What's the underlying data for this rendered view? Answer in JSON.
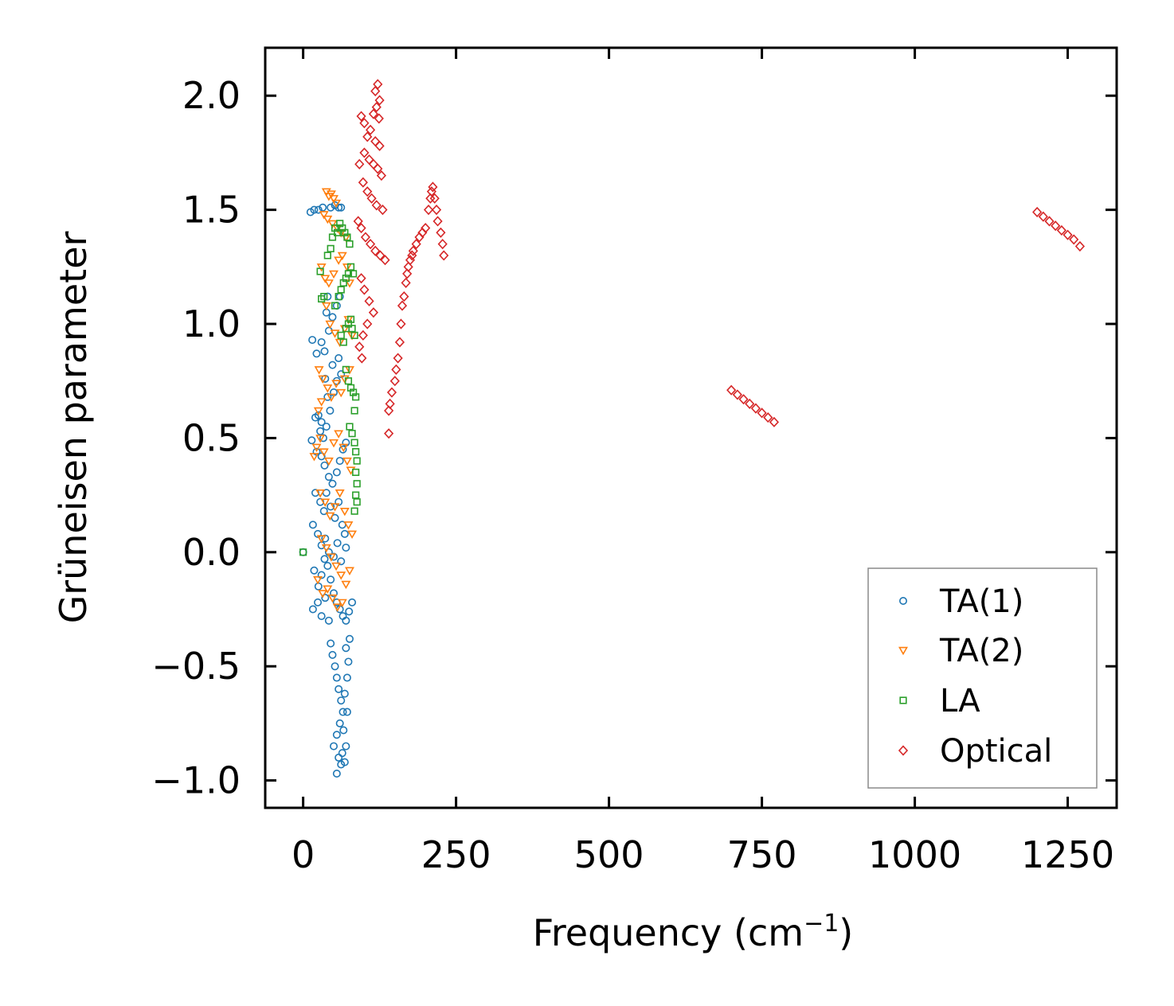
{
  "chart_data": {
    "type": "scatter",
    "title": "",
    "xlabel": "Frequency (cm",
    "xlabel_sup": "−1",
    "xlabel_close": ")",
    "ylabel": "Grüneisen parameter",
    "xlim": [
      -62,
      1330
    ],
    "ylim": [
      -1.12,
      2.21
    ],
    "xticks": [
      0,
      250,
      500,
      750,
      1000,
      1250
    ],
    "xtick_labels": [
      "0",
      "250",
      "500",
      "750",
      "1000",
      "1250"
    ],
    "yticks": [
      -1.0,
      -0.5,
      0.0,
      0.5,
      1.0,
      1.5,
      2.0
    ],
    "ytick_labels": [
      "−1.0",
      "−0.5",
      "0.0",
      "0.5",
      "1.0",
      "1.5",
      "2.0"
    ],
    "legend_position": "lower-right",
    "series": [
      {
        "name": "TA(1)",
        "marker": "circle",
        "color": "#1f77b4",
        "points": [
          [
            0,
            0
          ],
          [
            12,
            1.49
          ],
          [
            18,
            1.5
          ],
          [
            25,
            1.5
          ],
          [
            32,
            1.51
          ],
          [
            45,
            1.51
          ],
          [
            52,
            1.52
          ],
          [
            58,
            1.51
          ],
          [
            62,
            1.51
          ],
          [
            15,
            0.93
          ],
          [
            22,
            0.87
          ],
          [
            30,
            0.92
          ],
          [
            35,
            0.88
          ],
          [
            42,
            0.97
          ],
          [
            48,
            1.03
          ],
          [
            55,
            1.08
          ],
          [
            60,
            1.12
          ],
          [
            40,
            1.12
          ],
          [
            38,
            1.05
          ],
          [
            20,
            0.59
          ],
          [
            25,
            0.6
          ],
          [
            30,
            0.57
          ],
          [
            28,
            0.53
          ],
          [
            33,
            0.5
          ],
          [
            38,
            0.55
          ],
          [
            44,
            0.62
          ],
          [
            50,
            0.7
          ],
          [
            55,
            0.75
          ],
          [
            48,
            0.82
          ],
          [
            36,
            0.76
          ],
          [
            40,
            0.68
          ],
          [
            58,
            0.85
          ],
          [
            62,
            0.78
          ],
          [
            14,
            0.49
          ],
          [
            22,
            0.44
          ],
          [
            30,
            0.42
          ],
          [
            35,
            0.38
          ],
          [
            42,
            0.33
          ],
          [
            48,
            0.3
          ],
          [
            55,
            0.35
          ],
          [
            60,
            0.4
          ],
          [
            65,
            0.45
          ],
          [
            70,
            0.48
          ],
          [
            20,
            0.26
          ],
          [
            28,
            0.22
          ],
          [
            34,
            0.18
          ],
          [
            38,
            0.26
          ],
          [
            45,
            0.2
          ],
          [
            52,
            0.15
          ],
          [
            58,
            0.22
          ],
          [
            64,
            0.12
          ],
          [
            68,
            0.08
          ],
          [
            16,
            0.12
          ],
          [
            24,
            0.08
          ],
          [
            30,
            0.03
          ],
          [
            36,
            0.06
          ],
          [
            42,
            0.0
          ],
          [
            50,
            -0.02
          ],
          [
            56,
            0.04
          ],
          [
            62,
            -0.04
          ],
          [
            70,
            0.02
          ],
          [
            18,
            -0.08
          ],
          [
            25,
            -0.15
          ],
          [
            30,
            -0.1
          ],
          [
            35,
            -0.03
          ],
          [
            40,
            -0.06
          ],
          [
            45,
            -0.12
          ],
          [
            50,
            -0.18
          ],
          [
            55,
            -0.22
          ],
          [
            60,
            -0.25
          ],
          [
            65,
            -0.28
          ],
          [
            70,
            -0.3
          ],
          [
            75,
            -0.26
          ],
          [
            80,
            -0.22
          ],
          [
            16,
            -0.25
          ],
          [
            24,
            -0.22
          ],
          [
            30,
            -0.28
          ],
          [
            36,
            -0.2
          ],
          [
            42,
            -0.3
          ],
          [
            45,
            -0.4
          ],
          [
            48,
            -0.45
          ],
          [
            52,
            -0.5
          ],
          [
            55,
            -0.55
          ],
          [
            58,
            -0.6
          ],
          [
            62,
            -0.65
          ],
          [
            65,
            -0.7
          ],
          [
            60,
            -0.75
          ],
          [
            55,
            -0.8
          ],
          [
            50,
            -0.85
          ],
          [
            58,
            -0.9
          ],
          [
            62,
            -0.93
          ],
          [
            55,
            -0.97
          ],
          [
            64,
            -0.88
          ],
          [
            68,
            -0.92
          ],
          [
            70,
            -0.85
          ],
          [
            66,
            -0.78
          ],
          [
            72,
            -0.7
          ],
          [
            68,
            -0.62
          ],
          [
            72,
            -0.55
          ],
          [
            74,
            -0.48
          ],
          [
            70,
            -0.42
          ],
          [
            76,
            -0.38
          ]
        ]
      },
      {
        "name": "TA(2)",
        "marker": "triangle-down",
        "color": "#ff7f0e",
        "points": [
          [
            38,
            1.58
          ],
          [
            42,
            1.56
          ],
          [
            46,
            1.57
          ],
          [
            50,
            1.55
          ],
          [
            54,
            1.53
          ],
          [
            34,
            1.48
          ],
          [
            40,
            1.46
          ],
          [
            48,
            1.44
          ],
          [
            56,
            1.42
          ],
          [
            62,
            1.4
          ],
          [
            70,
            1.38
          ],
          [
            30,
            1.25
          ],
          [
            36,
            1.2
          ],
          [
            42,
            1.18
          ],
          [
            50,
            1.22
          ],
          [
            58,
            1.28
          ],
          [
            64,
            1.3
          ],
          [
            72,
            1.25
          ],
          [
            76,
            1.18
          ],
          [
            38,
            1.08
          ],
          [
            44,
            1.0
          ],
          [
            52,
            0.96
          ],
          [
            60,
            0.92
          ],
          [
            68,
            0.98
          ],
          [
            74,
            1.02
          ],
          [
            80,
            0.95
          ],
          [
            26,
            0.8
          ],
          [
            32,
            0.76
          ],
          [
            40,
            0.72
          ],
          [
            46,
            0.68
          ],
          [
            54,
            0.74
          ],
          [
            62,
            0.7
          ],
          [
            68,
            0.76
          ],
          [
            76,
            0.8
          ],
          [
            30,
            0.66
          ],
          [
            25,
            0.62
          ],
          [
            18,
            0.42
          ],
          [
            22,
            0.46
          ],
          [
            28,
            0.5
          ],
          [
            34,
            0.44
          ],
          [
            42,
            0.4
          ],
          [
            50,
            0.48
          ],
          [
            58,
            0.52
          ],
          [
            66,
            0.46
          ],
          [
            72,
            0.4
          ],
          [
            78,
            0.36
          ],
          [
            28,
            0.26
          ],
          [
            36,
            0.22
          ],
          [
            44,
            0.16
          ],
          [
            52,
            0.2
          ],
          [
            60,
            0.26
          ],
          [
            68,
            0.18
          ],
          [
            74,
            0.12
          ],
          [
            80,
            0.08
          ],
          [
            30,
            0.06
          ],
          [
            38,
            0.02
          ],
          [
            46,
            -0.02
          ],
          [
            54,
            -0.06
          ],
          [
            62,
            -0.1
          ],
          [
            70,
            -0.14
          ],
          [
            76,
            -0.08
          ],
          [
            24,
            -0.12
          ],
          [
            32,
            -0.18
          ],
          [
            40,
            -0.16
          ],
          [
            48,
            -0.2
          ],
          [
            56,
            -0.24
          ],
          [
            64,
            -0.22
          ]
        ]
      },
      {
        "name": "LA",
        "marker": "square",
        "color": "#2ca02c",
        "points": [
          [
            0,
            0
          ],
          [
            28,
            1.23
          ],
          [
            30,
            1.11
          ],
          [
            34,
            1.12
          ],
          [
            40,
            1.3
          ],
          [
            45,
            1.33
          ],
          [
            48,
            1.38
          ],
          [
            52,
            1.42
          ],
          [
            56,
            1.4
          ],
          [
            60,
            1.44
          ],
          [
            64,
            1.42
          ],
          [
            68,
            1.4
          ],
          [
            72,
            1.38
          ],
          [
            76,
            1.35
          ],
          [
            52,
            1.08
          ],
          [
            58,
            1.12
          ],
          [
            62,
            1.15
          ],
          [
            66,
            1.18
          ],
          [
            70,
            1.2
          ],
          [
            74,
            1.22
          ],
          [
            78,
            1.25
          ],
          [
            82,
            1.22
          ],
          [
            62,
            0.95
          ],
          [
            66,
            0.92
          ],
          [
            70,
            0.98
          ],
          [
            74,
            1.0
          ],
          [
            78,
            1.02
          ],
          [
            80,
            0.98
          ],
          [
            84,
            0.95
          ],
          [
            70,
            0.8
          ],
          [
            74,
            0.75
          ],
          [
            78,
            0.72
          ],
          [
            82,
            0.7
          ],
          [
            86,
            0.68
          ],
          [
            84,
            0.62
          ],
          [
            76,
            0.55
          ],
          [
            80,
            0.52
          ],
          [
            84,
            0.48
          ],
          [
            86,
            0.44
          ],
          [
            88,
            0.4
          ],
          [
            86,
            0.35
          ],
          [
            88,
            0.3
          ],
          [
            86,
            0.25
          ],
          [
            88,
            0.22
          ],
          [
            84,
            0.18
          ]
        ]
      },
      {
        "name": "Optical",
        "marker": "diamond",
        "color": "#d62728",
        "points": [
          [
            122,
            2.05
          ],
          [
            118,
            2.02
          ],
          [
            125,
            1.98
          ],
          [
            120,
            1.95
          ],
          [
            115,
            1.92
          ],
          [
            124,
            1.9
          ],
          [
            95,
            1.91
          ],
          [
            100,
            1.88
          ],
          [
            110,
            1.85
          ],
          [
            105,
            1.82
          ],
          [
            118,
            1.8
          ],
          [
            125,
            1.78
          ],
          [
            100,
            1.75
          ],
          [
            108,
            1.72
          ],
          [
            115,
            1.7
          ],
          [
            122,
            1.68
          ],
          [
            128,
            1.65
          ],
          [
            92,
            1.7
          ],
          [
            98,
            1.62
          ],
          [
            105,
            1.58
          ],
          [
            112,
            1.55
          ],
          [
            120,
            1.52
          ],
          [
            130,
            1.5
          ],
          [
            90,
            1.45
          ],
          [
            95,
            1.42
          ],
          [
            102,
            1.38
          ],
          [
            110,
            1.35
          ],
          [
            118,
            1.32
          ],
          [
            126,
            1.3
          ],
          [
            134,
            1.28
          ],
          [
            95,
            1.2
          ],
          [
            100,
            1.15
          ],
          [
            108,
            1.1
          ],
          [
            115,
            1.05
          ],
          [
            105,
            1.0
          ],
          [
            98,
            0.95
          ],
          [
            92,
            0.9
          ],
          [
            96,
            0.85
          ],
          [
            140,
            0.62
          ],
          [
            142,
            0.65
          ],
          [
            145,
            0.7
          ],
          [
            150,
            0.75
          ],
          [
            152,
            0.8
          ],
          [
            155,
            0.85
          ],
          [
            158,
            0.92
          ],
          [
            160,
            1.0
          ],
          [
            162,
            1.08
          ],
          [
            165,
            1.12
          ],
          [
            168,
            1.18
          ],
          [
            170,
            1.22
          ],
          [
            172,
            1.25
          ],
          [
            175,
            1.28
          ],
          [
            178,
            1.3
          ],
          [
            180,
            1.32
          ],
          [
            185,
            1.35
          ],
          [
            190,
            1.38
          ],
          [
            195,
            1.4
          ],
          [
            200,
            1.42
          ],
          [
            205,
            1.5
          ],
          [
            208,
            1.55
          ],
          [
            210,
            1.58
          ],
          [
            212,
            1.6
          ],
          [
            215,
            1.55
          ],
          [
            218,
            1.5
          ],
          [
            220,
            1.45
          ],
          [
            225,
            1.4
          ],
          [
            228,
            1.35
          ],
          [
            230,
            1.3
          ],
          [
            140,
            0.52
          ],
          [
            700,
            0.71
          ],
          [
            710,
            0.69
          ],
          [
            720,
            0.67
          ],
          [
            730,
            0.65
          ],
          [
            740,
            0.63
          ],
          [
            750,
            0.61
          ],
          [
            760,
            0.59
          ],
          [
            770,
            0.57
          ],
          [
            1200,
            1.49
          ],
          [
            1210,
            1.47
          ],
          [
            1220,
            1.45
          ],
          [
            1230,
            1.43
          ],
          [
            1240,
            1.41
          ],
          [
            1250,
            1.39
          ],
          [
            1260,
            1.37
          ],
          [
            1270,
            1.34
          ]
        ]
      }
    ]
  }
}
